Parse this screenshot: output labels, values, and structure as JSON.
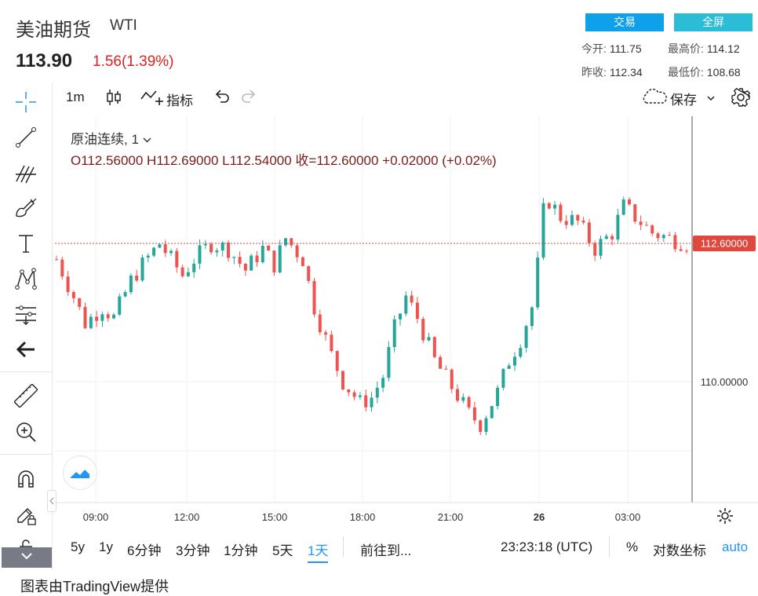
{
  "header": {
    "title": "美油期货",
    "symbol": "WTI",
    "price": "113.90",
    "change": "1.56(1.39%)",
    "trade_label": "交易",
    "fullscreen_label": "全屏",
    "stats": {
      "open_label": "今开:",
      "open": "111.75",
      "high_label": "最高价:",
      "high": "114.12",
      "prev_close_label": "昨收:",
      "prev_close": "112.34",
      "low_label": "最低价:",
      "low": "108.68"
    }
  },
  "toolbar": {
    "interval": "1m",
    "indicators_label": "指标",
    "save_label": "保存"
  },
  "legend": {
    "series_title": "原油连续, 1",
    "ohlc": "O112.56000   H112.69000   L112.54000   收=112.60000   +0.02000 (+0.02%)"
  },
  "price_axis": {
    "current_label": "112.60000",
    "tick_label": "110.00000"
  },
  "time_axis": [
    "09:00",
    "12:00",
    "15:00",
    "18:00",
    "21:00",
    "26",
    "03:00"
  ],
  "bottom_bar": {
    "ranges": [
      "5y",
      "1y",
      "6分钟",
      "3分钟",
      "1分钟",
      "5天",
      "1天"
    ],
    "active_range": "1天",
    "goto_label": "前往到...",
    "clock": "23:23:18 (UTC)",
    "percent_label": "%",
    "log_label": "对数坐标",
    "auto_label": "auto"
  },
  "footer": "图表由TradingView提供",
  "colors": {
    "up": "#26a69a",
    "down": "#ef5350",
    "accent": "#2196f3",
    "current_price": "#e0483d"
  },
  "chart_data": {
    "type": "candlestick",
    "current_price": 112.6,
    "y_tick": 110.0,
    "ylim": [
      108.3,
      114.6
    ],
    "x_ticks": [
      "09:00",
      "12:00",
      "15:00",
      "18:00",
      "21:00",
      "26",
      "03:00"
    ],
    "path_points": [
      [
        0,
        112.3
      ],
      [
        3,
        111.6
      ],
      [
        5,
        111.1
      ],
      [
        8,
        111.4
      ],
      [
        10,
        111.2
      ],
      [
        13,
        111.9
      ],
      [
        15,
        112.2
      ],
      [
        18,
        112.6
      ],
      [
        20,
        112.3
      ],
      [
        22,
        112.0
      ],
      [
        24,
        112.3
      ],
      [
        27,
        112.6
      ],
      [
        30,
        112.5
      ],
      [
        33,
        112.1
      ],
      [
        36,
        112.5
      ],
      [
        38,
        112.2
      ],
      [
        40,
        112.7
      ],
      [
        43,
        112.3
      ],
      [
        45,
        111.4
      ],
      [
        48,
        110.5
      ],
      [
        50,
        110.0
      ],
      [
        53,
        109.6
      ],
      [
        55,
        109.7
      ],
      [
        57,
        110.1
      ],
      [
        59,
        111.0
      ],
      [
        61,
        111.6
      ],
      [
        63,
        111.2
      ],
      [
        66,
        110.4
      ],
      [
        69,
        109.9
      ],
      [
        72,
        109.4
      ],
      [
        74,
        109.2
      ],
      [
        77,
        109.8
      ],
      [
        79,
        110.4
      ],
      [
        81,
        110.8
      ],
      [
        83,
        111.4
      ],
      [
        84,
        112.2
      ],
      [
        85,
        113.2
      ],
      [
        86,
        113.4
      ],
      [
        88,
        113.1
      ],
      [
        91,
        113.0
      ],
      [
        94,
        112.5
      ],
      [
        97,
        112.8
      ],
      [
        99,
        113.3
      ],
      [
        101,
        113.1
      ],
      [
        104,
        112.8
      ],
      [
        107,
        112.7
      ],
      [
        110,
        112.6
      ]
    ]
  }
}
